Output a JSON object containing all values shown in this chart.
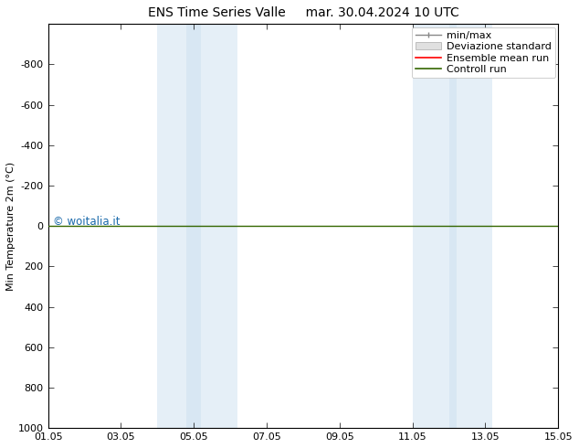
{
  "title_left": "ENS Time Series Valle",
  "title_right": "mar. 30.04.2024 10 UTC",
  "ylabel": "Min Temperature 2m (°C)",
  "ylim_bottom": -1000,
  "ylim_top": 1000,
  "ytick_positions": [
    -800,
    -600,
    -400,
    -200,
    0,
    200,
    400,
    600,
    800,
    1000
  ],
  "ytick_labels": [
    "-800",
    "-600",
    "-400",
    "-200",
    "0",
    "200",
    "400",
    "600",
    "800",
    "1000"
  ],
  "xtick_positions": [
    1,
    3,
    5,
    7,
    9,
    11,
    13,
    15
  ],
  "xtick_labels": [
    "01.05",
    "03.05",
    "05.05",
    "07.05",
    "09.05",
    "11.05",
    "13.05",
    "15.05"
  ],
  "xlim": [
    1,
    15
  ],
  "shade_bands": [
    [
      4.0,
      5.2
    ],
    [
      4.8,
      6.2
    ],
    [
      11.0,
      12.2
    ],
    [
      12.0,
      13.2
    ]
  ],
  "shade_color": "#cce0f0",
  "shade_alpha": 0.5,
  "control_run_y": 0,
  "control_run_color": "#336600",
  "ensemble_mean_color": "#ff0000",
  "minmax_color": "#888888",
  "watermark": "© woitalia.it",
  "watermark_color": "#1a6aab",
  "watermark_fontsize": 8.5,
  "legend_labels": [
    "min/max",
    "Deviazione standard",
    "Ensemble mean run",
    "Controll run"
  ],
  "background_color": "#ffffff",
  "fig_width": 6.34,
  "fig_height": 4.9,
  "dpi": 100,
  "title_fontsize": 10,
  "axis_fontsize": 8,
  "legend_fontsize": 8
}
